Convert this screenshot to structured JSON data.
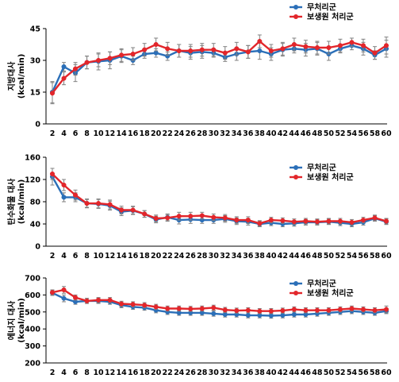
{
  "colors": {
    "control": "#2b6fb8",
    "treatment": "#e2262b",
    "axis": "#000000",
    "error": "#808080"
  },
  "chart_data": [
    {
      "type": "line",
      "ylabel_line1": "지방대사",
      "ylabel_line2": "(kcal/min)",
      "ylim": [
        0,
        45
      ],
      "yticks": [
        0,
        15,
        30,
        45
      ],
      "x": [
        2,
        4,
        6,
        8,
        10,
        12,
        14,
        16,
        18,
        20,
        22,
        24,
        26,
        28,
        30,
        32,
        34,
        36,
        38,
        40,
        42,
        44,
        46,
        48,
        50,
        52,
        54,
        56,
        58,
        60
      ],
      "legend_position": "top-right",
      "series": [
        {
          "name": "무처리군",
          "color": "#2b6fb8",
          "values": [
            15,
            27,
            24,
            29,
            29.5,
            30,
            32,
            30,
            33,
            33.5,
            32,
            34.5,
            33.5,
            34,
            33.5,
            31.5,
            33,
            34,
            34.5,
            33,
            35,
            35.5,
            35,
            35.5,
            33,
            35.5,
            37,
            35.5,
            32.5,
            35.5
          ],
          "errors": [
            5,
            2,
            4,
            3,
            4,
            4,
            3,
            2,
            2,
            2,
            2,
            3,
            3,
            3,
            2,
            2,
            3,
            3,
            4,
            3,
            3,
            2,
            3,
            3,
            3,
            2,
            2,
            3,
            2,
            4
          ]
        },
        {
          "name": "보생원 처리군",
          "color": "#e2262b",
          "values": [
            14.5,
            21.5,
            26,
            29,
            30,
            31,
            32.5,
            33,
            35,
            37.5,
            35.5,
            34.5,
            34.5,
            35,
            35,
            33.5,
            35.5,
            34,
            39,
            34.5,
            35.5,
            37.5,
            36.5,
            36,
            36,
            37,
            38.5,
            37,
            33.5,
            37
          ],
          "errors": [
            5,
            3,
            3,
            3,
            3,
            3,
            3,
            3,
            3,
            3,
            3,
            3,
            3,
            3,
            3,
            3,
            3,
            3,
            3,
            3,
            3,
            3,
            3,
            3,
            3,
            3,
            2,
            3,
            3,
            4
          ]
        }
      ]
    },
    {
      "type": "line",
      "ylabel_line1": "탄수화물 대사",
      "ylabel_line2": "(kcal/min)",
      "ylim": [
        0,
        160
      ],
      "yticks": [
        0,
        40,
        80,
        120,
        160
      ],
      "x": [
        2,
        4,
        6,
        8,
        10,
        12,
        14,
        16,
        18,
        20,
        22,
        24,
        26,
        28,
        30,
        32,
        34,
        36,
        38,
        40,
        42,
        44,
        46,
        48,
        50,
        52,
        54,
        56,
        58,
        60
      ],
      "legend_position": "top-right",
      "series": [
        {
          "name": "무처리군",
          "color": "#2b6fb8",
          "values": [
            125,
            88,
            88,
            77,
            76,
            73,
            62,
            64,
            58,
            48,
            52,
            47,
            48,
            47,
            47,
            49,
            45,
            44,
            40,
            42,
            40,
            41,
            43,
            43,
            44,
            42,
            40,
            43,
            50,
            44
          ],
          "errors": [
            15,
            8,
            8,
            7,
            8,
            8,
            7,
            7,
            6,
            6,
            6,
            7,
            7,
            6,
            6,
            6,
            6,
            6,
            5,
            5,
            5,
            5,
            5,
            5,
            5,
            5,
            5,
            5,
            5,
            5
          ]
        },
        {
          "name": "보생원 처리군",
          "color": "#e2262b",
          "values": [
            130,
            110,
            92,
            77,
            77,
            75,
            65,
            65,
            58,
            50,
            51,
            54,
            54,
            55,
            52,
            51,
            47,
            47,
            41,
            47,
            46,
            44,
            45,
            44,
            45,
            45,
            43,
            47,
            51,
            45
          ],
          "errors": [
            10,
            10,
            9,
            8,
            8,
            8,
            7,
            7,
            6,
            6,
            6,
            7,
            7,
            6,
            6,
            6,
            6,
            6,
            5,
            5,
            5,
            5,
            5,
            5,
            5,
            5,
            5,
            5,
            5,
            5
          ]
        }
      ]
    },
    {
      "type": "line",
      "ylabel_line1": "에너지 대사",
      "ylabel_line2": "(kcal/min)",
      "ylim": [
        200,
        700
      ],
      "yticks": [
        200,
        300,
        400,
        500,
        600,
        700
      ],
      "x": [
        2,
        4,
        6,
        8,
        10,
        12,
        14,
        16,
        18,
        20,
        22,
        24,
        26,
        28,
        30,
        32,
        34,
        36,
        38,
        40,
        42,
        44,
        46,
        48,
        50,
        52,
        54,
        56,
        58,
        60
      ],
      "legend_position": "top-right",
      "series": [
        {
          "name": "무처리군",
          "color": "#2b6fb8",
          "values": [
            612,
            580,
            560,
            565,
            565,
            560,
            540,
            530,
            525,
            510,
            500,
            495,
            495,
            495,
            490,
            485,
            485,
            480,
            480,
            478,
            480,
            485,
            485,
            490,
            495,
            500,
            505,
            500,
            495,
            505
          ],
          "errors": [
            15,
            20,
            15,
            15,
            15,
            15,
            15,
            15,
            15,
            15,
            15,
            15,
            15,
            15,
            15,
            15,
            15,
            15,
            15,
            15,
            15,
            15,
            15,
            15,
            15,
            15,
            15,
            15,
            15,
            15
          ]
        },
        {
          "name": "보생원 처리군",
          "color": "#e2262b",
          "values": [
            615,
            630,
            585,
            565,
            570,
            570,
            548,
            545,
            540,
            530,
            520,
            520,
            518,
            520,
            525,
            512,
            508,
            510,
            505,
            505,
            508,
            515,
            510,
            510,
            510,
            515,
            520,
            515,
            510,
            515
          ],
          "errors": [
            15,
            20,
            15,
            15,
            15,
            15,
            15,
            15,
            15,
            15,
            15,
            15,
            15,
            15,
            15,
            15,
            15,
            15,
            15,
            15,
            15,
            15,
            15,
            15,
            15,
            15,
            15,
            15,
            15,
            20
          ]
        }
      ]
    }
  ]
}
